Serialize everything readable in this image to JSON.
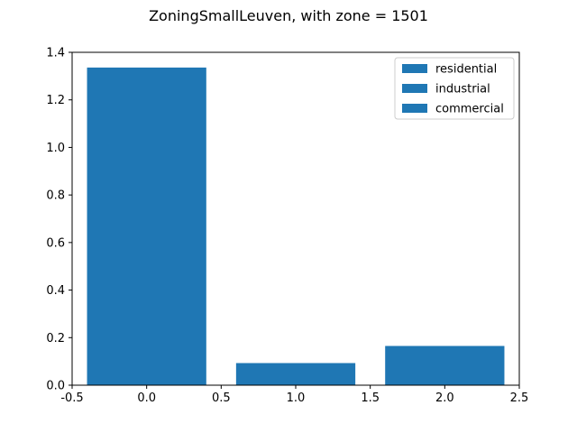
{
  "chart_data": {
    "type": "bar",
    "title": "ZoningSmallLeuven, with zone = 1501",
    "xlabel": "",
    "ylabel": "",
    "xlim": [
      -0.5,
      2.5
    ],
    "ylim": [
      0,
      1.4
    ],
    "xticks": [
      "-0.5",
      "0.0",
      "0.5",
      "1.0",
      "1.5",
      "2.0",
      "2.5"
    ],
    "yticks": [
      "0.0",
      "0.2",
      "0.4",
      "0.6",
      "0.8",
      "1.0",
      "1.2",
      "1.4"
    ],
    "bar_width": 0.8,
    "color": "#1f77b4",
    "grid": false,
    "legend_position": "top-right",
    "series": [
      {
        "name": "residential",
        "x": 0,
        "value": 1.336
      },
      {
        "name": "industrial",
        "x": 1,
        "value": 0.093
      },
      {
        "name": "commercial",
        "x": 2,
        "value": 0.165
      }
    ]
  }
}
